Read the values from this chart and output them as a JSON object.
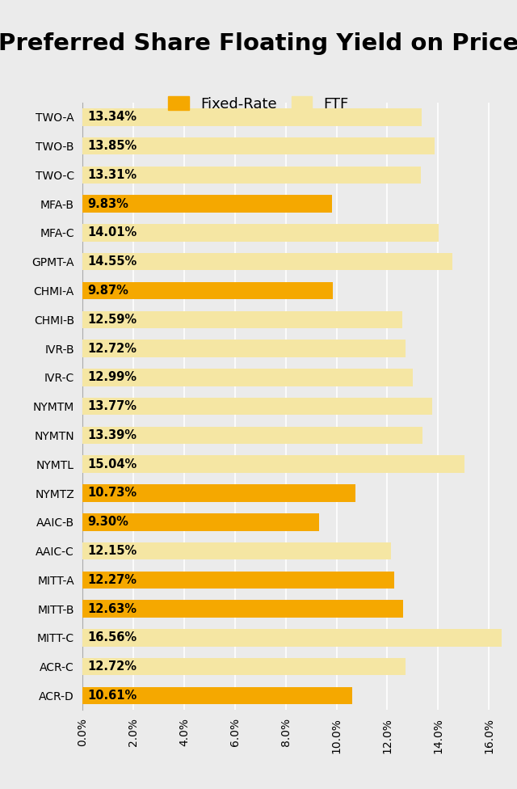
{
  "title": "Preferred Share Floating Yield on Price",
  "categories": [
    "TWO-A",
    "TWO-B",
    "TWO-C",
    "MFA-B",
    "MFA-C",
    "GPMT-A",
    "CHMI-A",
    "CHMI-B",
    "IVR-B",
    "IVR-C",
    "NYMTM",
    "NYMTN",
    "NYMTL",
    "NYMTZ",
    "AAIC-B",
    "AAIC-C",
    "MITT-A",
    "MITT-B",
    "MITT-C",
    "ACR-C",
    "ACR-D"
  ],
  "ftf_values": [
    13.34,
    13.85,
    13.31,
    9.83,
    14.01,
    14.55,
    9.87,
    12.59,
    12.72,
    12.99,
    13.77,
    13.39,
    15.04,
    10.73,
    9.3,
    12.15,
    12.27,
    12.63,
    16.56,
    12.72,
    10.61
  ],
  "fixed_rate_flags": [
    false,
    false,
    false,
    true,
    false,
    false,
    true,
    false,
    false,
    false,
    false,
    false,
    false,
    true,
    true,
    false,
    true,
    true,
    false,
    false,
    true
  ],
  "label_values": [
    "13.34%",
    "13.85%",
    "13.31%",
    "9.83%",
    "14.01%",
    "14.55%",
    "9.87%",
    "12.59%",
    "12.72%",
    "12.99%",
    "13.77%",
    "13.39%",
    "15.04%",
    "10.73%",
    "9.30%",
    "12.15%",
    "12.27%",
    "12.63%",
    "16.56%",
    "12.72%",
    "10.61%"
  ],
  "ftf_color": "#F5E6A3",
  "fixed_rate_color": "#F5A800",
  "background_color": "#EBEBEB",
  "xlim": [
    0,
    16.5
  ],
  "xtick_values": [
    0,
    2,
    4,
    6,
    8,
    10,
    12,
    14,
    16
  ],
  "bar_height": 0.6,
  "title_fontsize": 21,
  "label_fontsize": 10.5,
  "ytick_fontsize": 11.5,
  "xtick_fontsize": 10,
  "legend_fontsize": 13
}
